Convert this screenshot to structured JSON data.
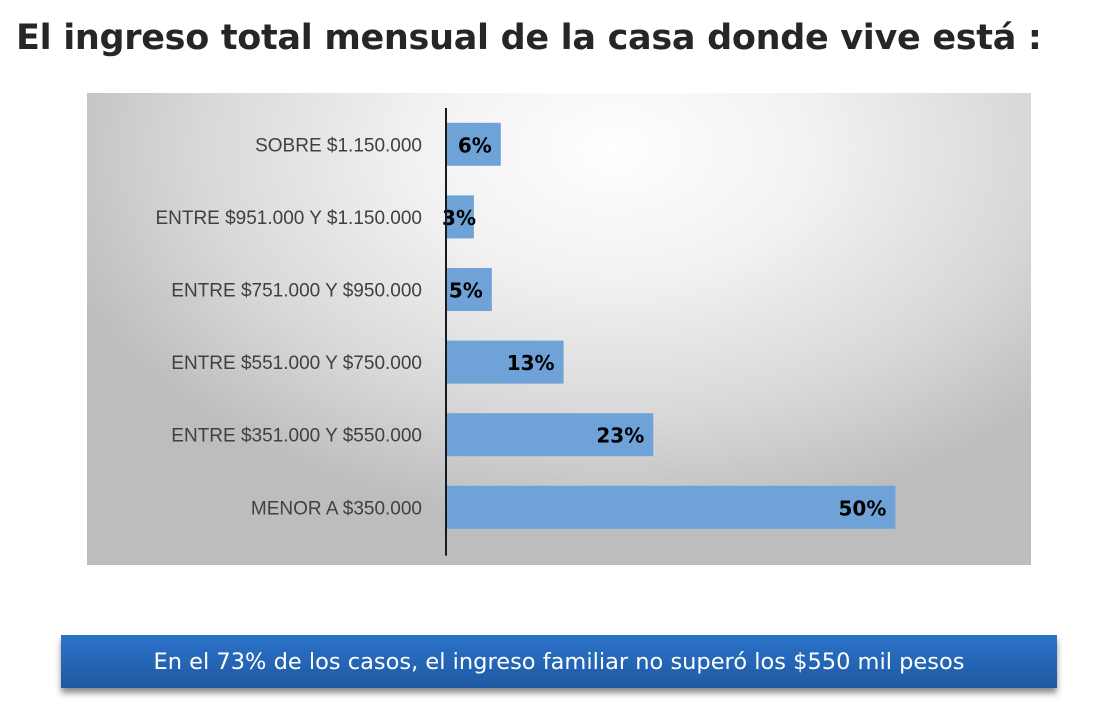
{
  "title": "El ingreso total mensual de la casa donde vive está :",
  "chart_data": {
    "type": "bar",
    "orientation": "horizontal",
    "categories": [
      "MENOR A $350.000",
      "ENTRE $351.000 Y $550.000",
      "ENTRE $551.000 Y $750.000",
      "ENTRE $751.000 Y $950.000",
      "ENTRE $951.000 Y $1.150.000",
      "SOBRE $1.150.000"
    ],
    "values": [
      50,
      23,
      13,
      5,
      3,
      6
    ],
    "value_labels": [
      "50%",
      "23%",
      "13%",
      "5%",
      "3%",
      "6%"
    ],
    "unit": "%",
    "xlim": [
      0,
      62
    ],
    "title": "",
    "xlabel": "",
    "ylabel": "",
    "grid": false,
    "legend": "none",
    "category_order": "first category at bottom",
    "bar_color": "#6fa3d8",
    "background": "gray radial gradient"
  },
  "banner": {
    "text": "En el 73% de los casos, el ingreso familiar no superó los $550 mil pesos",
    "color": "#2566b6"
  }
}
